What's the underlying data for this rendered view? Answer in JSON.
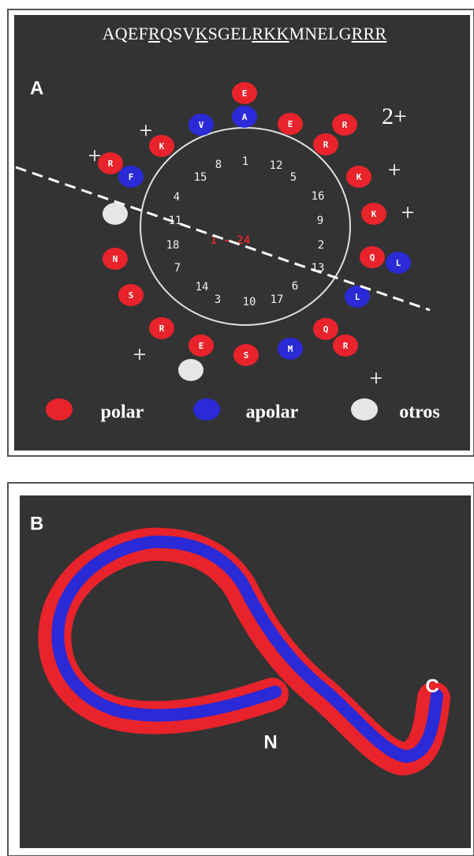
{
  "panel_a": {
    "label": "A",
    "sequence": [
      {
        "text": "AQEF",
        "underline": false
      },
      {
        "text": "R",
        "underline": true
      },
      {
        "text": "QSV",
        "underline": false
      },
      {
        "text": "K",
        "underline": true
      },
      {
        "text": "SGEL",
        "underline": false
      },
      {
        "text": "RKK",
        "underline": true
      },
      {
        "text": "MNELG",
        "underline": false
      },
      {
        "text": "RRR",
        "underline": true
      }
    ],
    "residues": [
      {
        "label": "E",
        "color": "#e8232b"
      },
      {
        "label": "A",
        "color": "#2a2ad6"
      },
      {
        "label": "V",
        "color": "#2a2ad6"
      },
      {
        "label": "E",
        "color": "#e8232b"
      },
      {
        "label": "R",
        "color": "#e8232b"
      },
      {
        "label": "K",
        "color": "#e8232b"
      },
      {
        "label": "R",
        "color": "#e8232b"
      },
      {
        "label": "R",
        "color": "#e8232b"
      },
      {
        "label": "F",
        "color": "#2a2ad6"
      },
      {
        "label": "K",
        "color": "#e8232b"
      },
      {
        "label": "K",
        "color": "#e8232b"
      },
      {
        "color": "#e6e6e6"
      },
      {
        "label": "N",
        "color": "#e8232b"
      },
      {
        "label": "Q",
        "color": "#e8232b"
      },
      {
        "label": "L",
        "color": "#2a2ad6"
      },
      {
        "label": "S",
        "color": "#e8232b"
      },
      {
        "label": "L",
        "color": "#2a2ad6"
      },
      {
        "label": "R",
        "color": "#e8232b"
      },
      {
        "label": "Q",
        "color": "#e8232b"
      },
      {
        "label": "R",
        "color": "#e8232b"
      },
      {
        "label": "E",
        "color": "#e8232b"
      },
      {
        "label": "S",
        "color": "#e8232b"
      },
      {
        "label": "M",
        "color": "#2a2ad6"
      },
      {
        "color": "#e6e6e6"
      }
    ],
    "wheel_numbers": [
      15,
      8,
      1,
      12,
      5,
      4,
      16,
      11,
      9,
      18,
      2,
      7,
      13,
      14,
      6,
      3,
      10,
      17
    ],
    "center_label": "1 - 24",
    "charges": [
      "2+",
      "+",
      "+",
      "+",
      "+",
      "+",
      "+"
    ],
    "legend": [
      {
        "name": "polar",
        "color": "#e8232b"
      },
      {
        "name": "apolar",
        "color": "#2a2ad6"
      },
      {
        "name": "otros",
        "color": "#e6e6e6"
      }
    ]
  },
  "panel_b": {
    "label": "B",
    "n_terminus": "N",
    "c_terminus": "C"
  }
}
